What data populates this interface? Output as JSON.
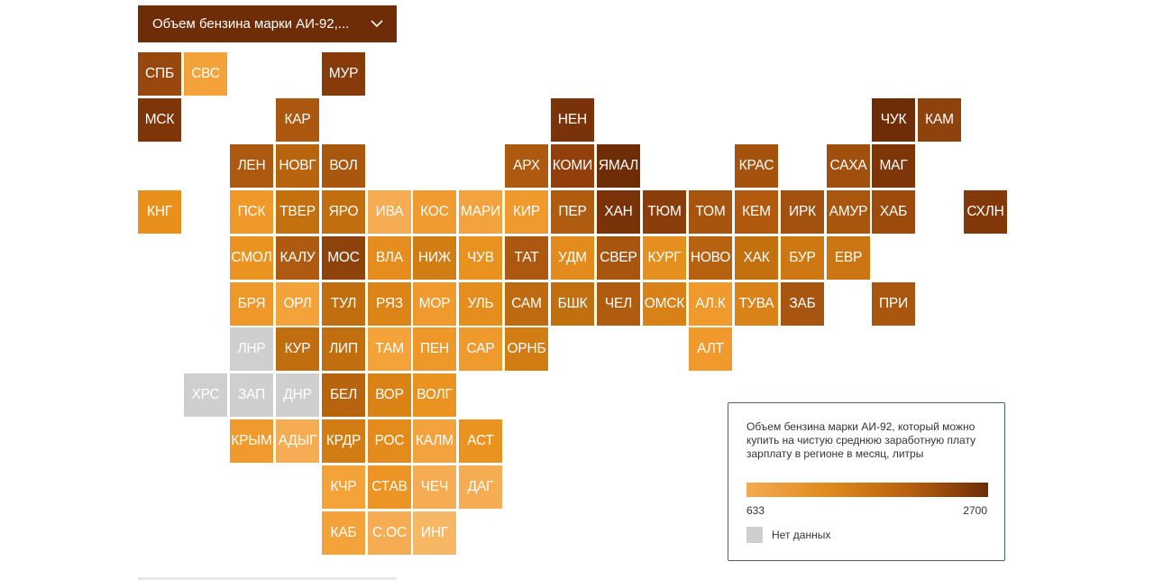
{
  "dropdown": {
    "selected": "Объем бензина марки АИ-92,...",
    "chevron_icon": "chevron-down-icon"
  },
  "legend": {
    "title": "Объем бензина марки АИ-92, который можно купить на чистую среднюю заработную плату зарплату в регионе в месяц, литры",
    "min_label": "633",
    "max_label": "2700",
    "no_data_label": "Нет данных",
    "gradient_colors": [
      "#f3aa50",
      "#e08a1e",
      "#b8610f",
      "#6e2d07"
    ],
    "no_data_color": "#cfcfcf"
  },
  "tiles": [
    {
      "label": "СПБ",
      "col": 0,
      "row": 0,
      "color": "#98470f"
    },
    {
      "label": "СВС",
      "col": 1,
      "row": 0,
      "color": "#f4a23a"
    },
    {
      "label": "МУР",
      "col": 4,
      "row": 0,
      "color": "#873a0a"
    },
    {
      "label": "МСК",
      "col": 0,
      "row": 1,
      "color": "#7e3508"
    },
    {
      "label": "КАР",
      "col": 3,
      "row": 1,
      "color": "#ab570f"
    },
    {
      "label": "НЕН",
      "col": 9,
      "row": 1,
      "color": "#7a3208"
    },
    {
      "label": "ЧУК",
      "col": 16,
      "row": 1,
      "color": "#6e2d07"
    },
    {
      "label": "КАМ",
      "col": 17,
      "row": 1,
      "color": "#8e420c"
    },
    {
      "label": "ЛЕН",
      "col": 2,
      "row": 2,
      "color": "#ad5910"
    },
    {
      "label": "НОВГ",
      "col": 3,
      "row": 2,
      "color": "#b8640f"
    },
    {
      "label": "ВОЛ",
      "col": 4,
      "row": 2,
      "color": "#a9560f"
    },
    {
      "label": "АРХ",
      "col": 8,
      "row": 2,
      "color": "#ad5910"
    },
    {
      "label": "КОМИ",
      "col": 9,
      "row": 2,
      "color": "#933f0b"
    },
    {
      "label": "ЯМАЛ",
      "col": 10,
      "row": 2,
      "color": "#6e2d07"
    },
    {
      "label": "КРАС",
      "col": 13,
      "row": 2,
      "color": "#a4520e"
    },
    {
      "label": "САХА",
      "col": 15,
      "row": 2,
      "color": "#a14f0d"
    },
    {
      "label": "МАГ",
      "col": 16,
      "row": 2,
      "color": "#7e3508"
    },
    {
      "label": "КНГ",
      "col": 0,
      "row": 3,
      "color": "#e9901c"
    },
    {
      "label": "ПСК",
      "col": 2,
      "row": 3,
      "color": "#f0982a"
    },
    {
      "label": "ТВЕР",
      "col": 3,
      "row": 3,
      "color": "#c3710f"
    },
    {
      "label": "ЯРО",
      "col": 4,
      "row": 3,
      "color": "#c06e10"
    },
    {
      "label": "ИВА",
      "col": 5,
      "row": 3,
      "color": "#f6ac52"
    },
    {
      "label": "КОС",
      "col": 6,
      "row": 3,
      "color": "#f09b30"
    },
    {
      "label": "МАРИ",
      "col": 7,
      "row": 3,
      "color": "#f3a33d"
    },
    {
      "label": "КИР",
      "col": 8,
      "row": 3,
      "color": "#f09a2d"
    },
    {
      "label": "ПЕР",
      "col": 9,
      "row": 3,
      "color": "#b05c10"
    },
    {
      "label": "ХАН",
      "col": 10,
      "row": 3,
      "color": "#7a3208"
    },
    {
      "label": "ТЮМ",
      "col": 11,
      "row": 3,
      "color": "#8a3d0b"
    },
    {
      "label": "ТОМ",
      "col": 12,
      "row": 3,
      "color": "#a7540f"
    },
    {
      "label": "КЕМ",
      "col": 13,
      "row": 3,
      "color": "#b0590f"
    },
    {
      "label": "ИРК",
      "col": 14,
      "row": 3,
      "color": "#a3510e"
    },
    {
      "label": "АМУР",
      "col": 15,
      "row": 3,
      "color": "#a9560f"
    },
    {
      "label": "ХАБ",
      "col": 16,
      "row": 3,
      "color": "#9d4b0d"
    },
    {
      "label": "СХЛН",
      "col": 18,
      "row": 3,
      "color": "#833809"
    },
    {
      "label": "СМОЛ",
      "col": 2,
      "row": 4,
      "color": "#ea9320"
    },
    {
      "label": "КАЛУ",
      "col": 3,
      "row": 4,
      "color": "#ae5a10"
    },
    {
      "label": "МОС",
      "col": 4,
      "row": 4,
      "color": "#8e420c"
    },
    {
      "label": "ВЛА",
      "col": 5,
      "row": 4,
      "color": "#e58d1e"
    },
    {
      "label": "НИЖ",
      "col": 6,
      "row": 4,
      "color": "#d27c14"
    },
    {
      "label": "ЧУВ",
      "col": 7,
      "row": 4,
      "color": "#e99220"
    },
    {
      "label": "ТАТ",
      "col": 8,
      "row": 4,
      "color": "#ac5810"
    },
    {
      "label": "УДМ",
      "col": 9,
      "row": 4,
      "color": "#e38c1d"
    },
    {
      "label": "СВЕР",
      "col": 10,
      "row": 4,
      "color": "#a8550f"
    },
    {
      "label": "КУРГ",
      "col": 11,
      "row": 4,
      "color": "#e5901e"
    },
    {
      "label": "НОВО",
      "col": 12,
      "row": 4,
      "color": "#b7620f"
    },
    {
      "label": "ХАК",
      "col": 13,
      "row": 4,
      "color": "#c3710f"
    },
    {
      "label": "БУР",
      "col": 14,
      "row": 4,
      "color": "#cd7813"
    },
    {
      "label": "ЕВР",
      "col": 15,
      "row": 4,
      "color": "#cb7612"
    },
    {
      "label": "БРЯ",
      "col": 2,
      "row": 5,
      "color": "#ee9829"
    },
    {
      "label": "ОРЛ",
      "col": 3,
      "row": 5,
      "color": "#f4a23a"
    },
    {
      "label": "ТУЛ",
      "col": 4,
      "row": 5,
      "color": "#c06e10"
    },
    {
      "label": "РЯЗ",
      "col": 5,
      "row": 5,
      "color": "#db8418"
    },
    {
      "label": "МОР",
      "col": 6,
      "row": 5,
      "color": "#f0992c"
    },
    {
      "label": "УЛЬ",
      "col": 7,
      "row": 5,
      "color": "#e58e1e"
    },
    {
      "label": "САМ",
      "col": 8,
      "row": 5,
      "color": "#bd6a10"
    },
    {
      "label": "БШК",
      "col": 9,
      "row": 5,
      "color": "#c0700f"
    },
    {
      "label": "ЧЕЛ",
      "col": 10,
      "row": 5,
      "color": "#b05c10"
    },
    {
      "label": "ОМСК",
      "col": 11,
      "row": 5,
      "color": "#d88117"
    },
    {
      "label": "АЛ.К",
      "col": 12,
      "row": 5,
      "color": "#f09a2d"
    },
    {
      "label": "ТУВА",
      "col": 13,
      "row": 5,
      "color": "#d98217"
    },
    {
      "label": "ЗАБ",
      "col": 14,
      "row": 5,
      "color": "#a8550f"
    },
    {
      "label": "ПРИ",
      "col": 16,
      "row": 5,
      "color": "#a9560f"
    },
    {
      "label": "ЛНР",
      "col": 2,
      "row": 6,
      "color": "#cfcfcf"
    },
    {
      "label": "КУР",
      "col": 3,
      "row": 6,
      "color": "#c06e10"
    },
    {
      "label": "ЛИП",
      "col": 4,
      "row": 6,
      "color": "#c06e10"
    },
    {
      "label": "ТАМ",
      "col": 5,
      "row": 6,
      "color": "#f4a23a"
    },
    {
      "label": "ПЕН",
      "col": 6,
      "row": 6,
      "color": "#ee9829"
    },
    {
      "label": "САР",
      "col": 7,
      "row": 6,
      "color": "#ef9a2c"
    },
    {
      "label": "ОРНБ",
      "col": 8,
      "row": 6,
      "color": "#d27c14"
    },
    {
      "label": "АЛТ",
      "col": 12,
      "row": 6,
      "color": "#f0992c"
    },
    {
      "label": "ХРС",
      "col": 1,
      "row": 7,
      "color": "#cfcfcf"
    },
    {
      "label": "ЗАП",
      "col": 2,
      "row": 7,
      "color": "#cfcfcf"
    },
    {
      "label": "ДНР",
      "col": 3,
      "row": 7,
      "color": "#cfcfcf"
    },
    {
      "label": "БЕЛ",
      "col": 4,
      "row": 7,
      "color": "#b8640f"
    },
    {
      "label": "ВОР",
      "col": 5,
      "row": 7,
      "color": "#d98317"
    },
    {
      "label": "ВОЛГ",
      "col": 6,
      "row": 7,
      "color": "#ea9320"
    },
    {
      "label": "КРЫМ",
      "col": 2,
      "row": 8,
      "color": "#f0992c"
    },
    {
      "label": "АДЫГ",
      "col": 3,
      "row": 8,
      "color": "#f6ac52"
    },
    {
      "label": "КРДР",
      "col": 4,
      "row": 8,
      "color": "#d27c14"
    },
    {
      "label": "РОС",
      "col": 5,
      "row": 8,
      "color": "#e38c1d"
    },
    {
      "label": "КАЛМ",
      "col": 6,
      "row": 8,
      "color": "#f3a33d"
    },
    {
      "label": "АСТ",
      "col": 7,
      "row": 8,
      "color": "#ea9320"
    },
    {
      "label": "КЧР",
      "col": 4,
      "row": 9,
      "color": "#f4a23a"
    },
    {
      "label": "СТАВ",
      "col": 5,
      "row": 9,
      "color": "#ec9524"
    },
    {
      "label": "ЧЕЧ",
      "col": 6,
      "row": 9,
      "color": "#f6ac52"
    },
    {
      "label": "ДАГ",
      "col": 7,
      "row": 9,
      "color": "#f6ac52"
    },
    {
      "label": "КАБ",
      "col": 4,
      "row": 10,
      "color": "#f4a23a"
    },
    {
      "label": "С.ОС",
      "col": 5,
      "row": 10,
      "color": "#f6ac52"
    },
    {
      "label": "ИНГ",
      "col": 6,
      "row": 10,
      "color": "#f7b865"
    }
  ]
}
